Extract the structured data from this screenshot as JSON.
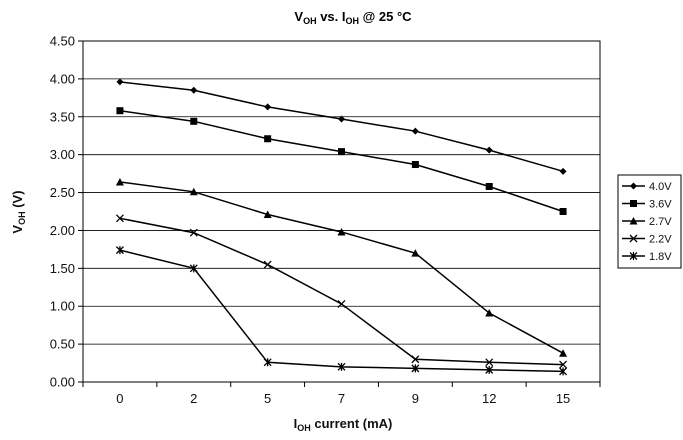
{
  "chart_data": {
    "type": "line",
    "title": {
      "main": "V",
      "sub1": "OH",
      "mid": " vs. I",
      "sub2": "OH",
      "tail": " @ 25 °C"
    },
    "xlabel": {
      "main": "I",
      "sub": "OH",
      "tail": " current (mA)"
    },
    "ylabel": {
      "main": "V",
      "sub": "OH",
      "tail": " (V)"
    },
    "categories": [
      "0",
      "2",
      "5",
      "7",
      "9",
      "12",
      "15"
    ],
    "ylim": [
      0,
      4.5
    ],
    "yticks": [
      "0.00",
      "0.50",
      "1.00",
      "1.50",
      "2.00",
      "2.50",
      "3.00",
      "3.50",
      "4.00",
      "4.50"
    ],
    "grid": "horizontal",
    "legend_position": "right",
    "series": [
      {
        "name": "4.0V",
        "marker": "diamond",
        "values": [
          3.96,
          3.85,
          3.63,
          3.47,
          3.31,
          3.06,
          2.78
        ]
      },
      {
        "name": "3.6V",
        "marker": "square",
        "values": [
          3.58,
          3.44,
          3.21,
          3.04,
          2.87,
          2.58,
          2.25
        ]
      },
      {
        "name": "2.7V",
        "marker": "triangle",
        "values": [
          2.64,
          2.51,
          2.21,
          1.98,
          1.7,
          0.91,
          0.38
        ]
      },
      {
        "name": "2.2V",
        "marker": "x",
        "values": [
          2.16,
          1.97,
          1.55,
          1.03,
          0.3,
          0.26,
          0.23
        ]
      },
      {
        "name": "1.8V",
        "marker": "asterisk",
        "values": [
          1.74,
          1.5,
          0.26,
          0.2,
          0.18,
          0.16,
          0.14
        ]
      }
    ]
  }
}
